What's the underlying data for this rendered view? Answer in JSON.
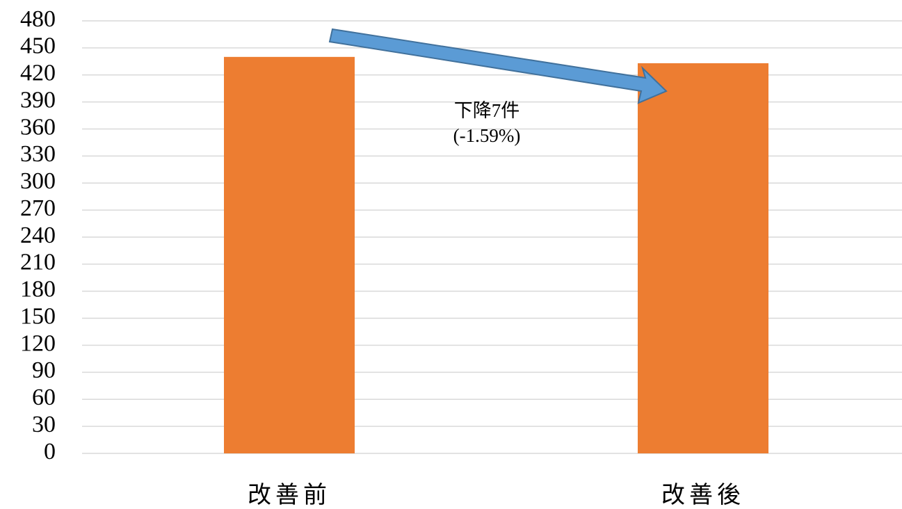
{
  "chart_data": {
    "type": "bar",
    "categories": [
      "改善前",
      "改善後"
    ],
    "values": [
      440,
      433
    ],
    "color": "#ed7d31",
    "ylim": [
      0,
      480
    ],
    "yticks": [
      0,
      30,
      60,
      90,
      120,
      150,
      180,
      210,
      240,
      270,
      300,
      330,
      360,
      390,
      420,
      450,
      480
    ],
    "grid": true,
    "annotations": [
      "下降7件",
      "(-1.59%)"
    ]
  }
}
